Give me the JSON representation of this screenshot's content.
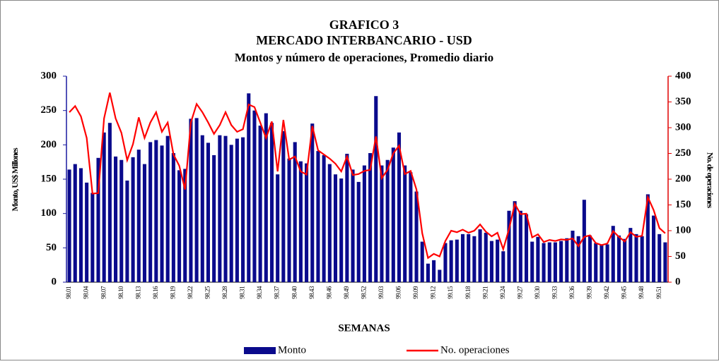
{
  "chart_data": {
    "type": "bar",
    "title": "GRAFICO 3",
    "subtitle": "MERCADO INTERBANCARIO - USD",
    "subtitle2": "Montos y número de operaciones, Promedio diario",
    "x_label": "SEMANAS",
    "y_label": "Monto, US$ Millones",
    "y2_label": "No. de operaciones",
    "categories": [
      "98.01",
      null,
      null,
      "98.04",
      null,
      null,
      "98.07",
      null,
      null,
      "98.10",
      null,
      null,
      "98.13",
      null,
      null,
      "98.16",
      null,
      null,
      "98.19",
      null,
      null,
      "98.22",
      null,
      null,
      "98.25",
      null,
      null,
      "98.28",
      null,
      null,
      "98.31",
      null,
      null,
      "98.34",
      null,
      null,
      "98.37",
      null,
      null,
      "98.40",
      null,
      null,
      "98.43",
      null,
      null,
      "98.46",
      null,
      null,
      "98.49",
      null,
      null,
      "98.52",
      null,
      null,
      "99.03",
      null,
      null,
      "99.06",
      null,
      null,
      "99.09",
      null,
      null,
      "99.12",
      null,
      null,
      "99.15",
      null,
      null,
      "99.18",
      null,
      null,
      "99.21",
      null,
      null,
      "99.24",
      null,
      null,
      "99.27",
      null,
      null,
      "99.30",
      null,
      null,
      "99.33",
      null,
      null,
      "99.36",
      null,
      null,
      "99.39",
      null,
      null,
      "99.42",
      null,
      null,
      "99.45",
      null,
      null,
      "99.48",
      null,
      null,
      "99.51",
      null
    ],
    "series": [
      {
        "name": "Monto",
        "type": "bar",
        "color": "#0a0a8c",
        "values": [
          164,
          172,
          166,
          145,
          130,
          181,
          218,
          232,
          183,
          178,
          148,
          182,
          193,
          172,
          204,
          207,
          199,
          213,
          188,
          163,
          165,
          238,
          239,
          214,
          203,
          185,
          214,
          213,
          200,
          209,
          211,
          275,
          250,
          228,
          246,
          232,
          157,
          220,
          180,
          204,
          176,
          173,
          231,
          191,
          185,
          172,
          157,
          151,
          187,
          164,
          146,
          170,
          188,
          271,
          170,
          178,
          196,
          218,
          170,
          160,
          132,
          59,
          27,
          32,
          18,
          57,
          61,
          62,
          70,
          70,
          67,
          77,
          72,
          60,
          62,
          45,
          104,
          118,
          104,
          99,
          59,
          66,
          57,
          58,
          58,
          60,
          64,
          75,
          67,
          120,
          68,
          57,
          54,
          55,
          82,
          68,
          63,
          79,
          70,
          67,
          128,
          97,
          70,
          58
        ]
      },
      {
        "name": "No. operaciones",
        "type": "line",
        "axis": "y2",
        "color": "#ff0000",
        "values": [
          330,
          342,
          322,
          280,
          172,
          173,
          318,
          368,
          318,
          290,
          237,
          268,
          320,
          280,
          310,
          330,
          292,
          310,
          248,
          226,
          180,
          310,
          346,
          330,
          310,
          288,
          305,
          330,
          305,
          292,
          297,
          345,
          340,
          310,
          280,
          312,
          215,
          315,
          238,
          244,
          215,
          209,
          303,
          256,
          248,
          240,
          230,
          215,
          244,
          208,
          210,
          216,
          218,
          283,
          202,
          218,
          250,
          265,
          210,
          216,
          180,
          95,
          47,
          55,
          50,
          80,
          100,
          97,
          102,
          96,
          100,
          112,
          98,
          89,
          96,
          64,
          103,
          152,
          132,
          133,
          87,
          93,
          78,
          82,
          80,
          83,
          82,
          85,
          70,
          88,
          91,
          76,
          72,
          75,
          99,
          88,
          79,
          97,
          88,
          90,
          165,
          140,
          105,
          95
        ]
      }
    ],
    "ylim": [
      0,
      300
    ],
    "yticks": [
      0,
      50,
      100,
      150,
      200,
      250,
      300
    ],
    "y2lim": [
      0,
      400
    ],
    "y2ticks": [
      0,
      50,
      100,
      150,
      200,
      250,
      300,
      350,
      400
    ]
  }
}
